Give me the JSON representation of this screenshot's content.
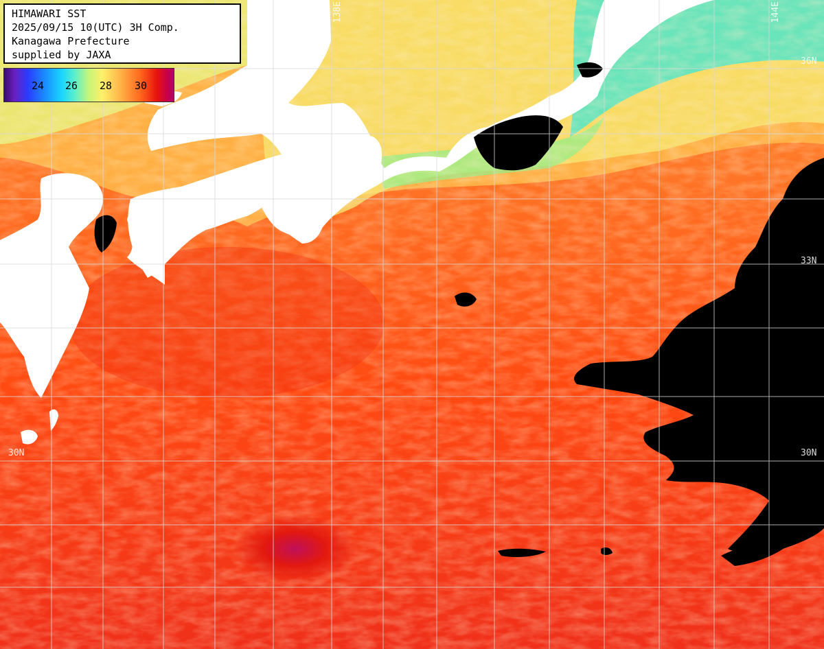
{
  "header": {
    "line1": "HIMAWARI SST",
    "line2": "2025/09/15 10(UTC) 3H Comp.",
    "line3": "Kanagawa Prefecture",
    "line4": "supplied by JAXA"
  },
  "legend": {
    "ticks": [
      "24",
      "26",
      "28",
      "30"
    ]
  },
  "coords": {
    "lat_36_right": "36N",
    "lat_33_right": "33N",
    "lat_30_left": "30N",
    "lat_30_right": "30N",
    "lon_138_top": "138E",
    "lon_144_top": "144E"
  },
  "colors": {
    "land": "#ffffff",
    "cloud": "#000000",
    "grid": "#d8d8d8",
    "warm_sea": "#ff4a12",
    "hot_sea": "#e2180e",
    "mild_sea": "#ff9a3a",
    "cool_sea": "#e6f07a",
    "cold_sea": "#3ae6c8"
  }
}
